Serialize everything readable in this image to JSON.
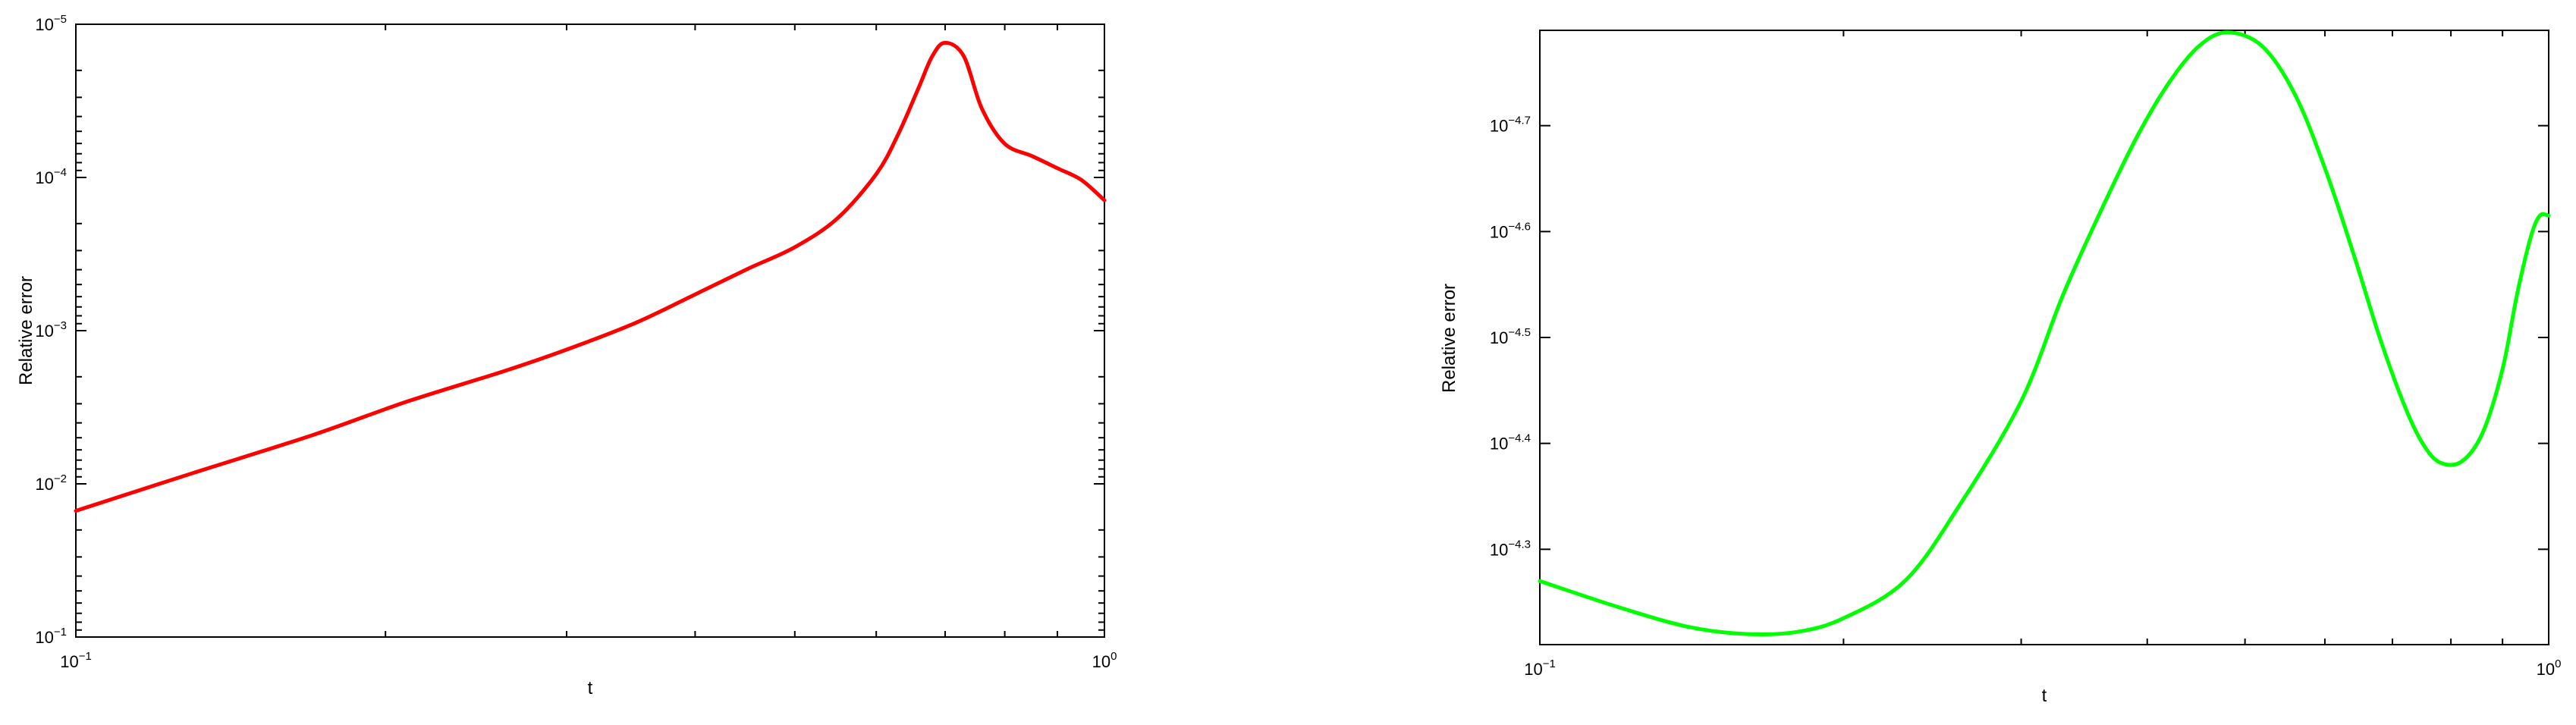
{
  "chart_data": [
    {
      "type": "line",
      "xlabel": "t",
      "ylabel": "Relative error",
      "x_scale": "log",
      "y_scale": "log",
      "y_axis_reversed": true,
      "xlim": [
        0.1,
        1
      ],
      "ylim": [
        1e-05,
        0.1
      ],
      "x_ticks": [
        {
          "value": 0.1,
          "base": "10",
          "exp": "−1"
        },
        {
          "value": 1,
          "base": "10",
          "exp": "0"
        }
      ],
      "y_ticks": [
        {
          "value": 1e-05,
          "base": "10",
          "exp": "−5"
        },
        {
          "value": 0.0001,
          "base": "10",
          "exp": "−4"
        },
        {
          "value": 0.001,
          "base": "10",
          "exp": "−3"
        },
        {
          "value": 0.01,
          "base": "10",
          "exp": "−2"
        },
        {
          "value": 0.1,
          "base": "10",
          "exp": "−1"
        }
      ],
      "grid": false,
      "series": [
        {
          "color": "#ff0000",
          "x": [
            0.1,
            0.13,
            0.17,
            0.21,
            0.26,
            0.3,
            0.35,
            0.4,
            0.45,
            0.5,
            0.55,
            0.6,
            0.63,
            0.66,
            0.68,
            0.7,
            0.73,
            0.76,
            0.8,
            0.85,
            0.9,
            0.95,
            1.0
          ],
          "y": [
            0.015,
            0.0085,
            0.0048,
            0.0029,
            0.00185,
            0.00133,
            0.00089,
            0.00058,
            0.000395,
            0.000285,
            0.000185,
            9.5e-05,
            5.25e-05,
            2.58e-05,
            1.62e-05,
            1.32e-05,
            1.62e-05,
            3.55e-05,
            6.03e-05,
            7.24e-05,
            8.7e-05,
            0.000104,
            0.000141
          ]
        }
      ]
    },
    {
      "type": "line",
      "xlabel": "t",
      "ylabel": "Relative error",
      "x_scale": "log",
      "y_scale": "log",
      "xlim": [
        0.1,
        1
      ],
      "ylim": [
        -4.79,
        -4.21
      ],
      "y_values_are": "log10 exponent of relative error",
      "x_ticks": [
        {
          "value": 0.1,
          "base": "10",
          "exp": "−1"
        },
        {
          "value": 1,
          "base": "10",
          "exp": "0"
        }
      ],
      "y_ticks": [
        {
          "value": -4.7,
          "base": "10",
          "exp": "−4.7"
        },
        {
          "value": -4.6,
          "base": "10",
          "exp": "−4.6"
        },
        {
          "value": -4.5,
          "base": "10",
          "exp": "−4.5"
        },
        {
          "value": -4.4,
          "base": "10",
          "exp": "−4.4"
        },
        {
          "value": -4.3,
          "base": "10",
          "exp": "−4.3"
        }
      ],
      "grid": false,
      "series": [
        {
          "color": "#00ff00",
          "x": [
            0.1,
            0.12,
            0.14,
            0.16,
            0.18,
            0.2,
            0.23,
            0.26,
            0.3,
            0.33,
            0.36,
            0.39,
            0.42,
            0.45,
            0.48,
            0.52,
            0.56,
            0.6,
            0.64,
            0.68,
            0.72,
            0.75,
            0.78,
            0.82,
            0.86,
            0.9,
            0.93,
            0.96,
            0.98,
            1.0
          ],
          "y": [
            -4.27,
            -4.245,
            -4.227,
            -4.22,
            -4.222,
            -4.235,
            -4.27,
            -4.34,
            -4.44,
            -4.54,
            -4.62,
            -4.688,
            -4.74,
            -4.775,
            -4.788,
            -4.775,
            -4.73,
            -4.66,
            -4.58,
            -4.5,
            -4.435,
            -4.4,
            -4.382,
            -4.383,
            -4.41,
            -4.47,
            -4.54,
            -4.595,
            -4.615,
            -4.615
          ]
        }
      ]
    }
  ]
}
